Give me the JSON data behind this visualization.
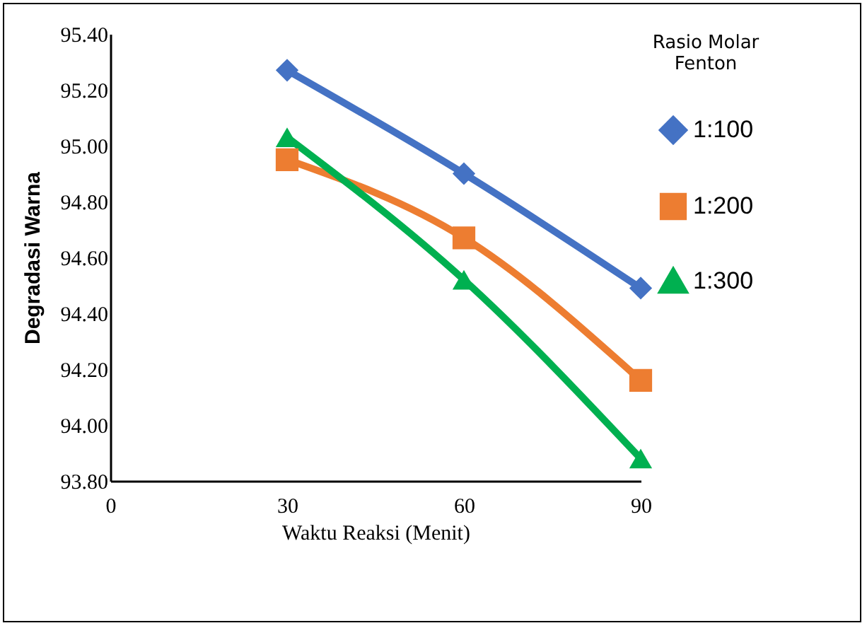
{
  "chart_data": {
    "type": "line",
    "xlabel": "Waktu Reaksi (Menit)",
    "ylabel": "Degradasi Warna",
    "legend_title": "Rasio Molar Fenton",
    "x": [
      30,
      60,
      90
    ],
    "series": [
      {
        "name": "1:100",
        "color": "#4472c4",
        "marker": "diamond",
        "values": [
          95.27,
          94.9,
          94.49
        ]
      },
      {
        "name": "1:200",
        "color": "#ed7d31",
        "marker": "square",
        "values": [
          94.95,
          94.67,
          94.16
        ]
      },
      {
        "name": "1:300",
        "color": "#00b050",
        "marker": "triangle",
        "values": [
          95.03,
          94.52,
          93.88
        ]
      }
    ],
    "xlim": [
      0,
      90
    ],
    "xticks": [
      0,
      30,
      60,
      90
    ],
    "ylim": [
      93.8,
      95.4
    ],
    "yticks": [
      {
        "value": 93.8,
        "label": "93.80"
      },
      {
        "value": 94.0,
        "label": "94.00"
      },
      {
        "value": 94.2,
        "label": "94.20"
      },
      {
        "value": 94.4,
        "label": "94.40"
      },
      {
        "value": 94.6,
        "label": "94.60"
      },
      {
        "value": 94.8,
        "label": "94.80"
      },
      {
        "value": 95.0,
        "label": "95.00"
      },
      {
        "value": 95.2,
        "label": "95.20"
      },
      {
        "value": 95.4,
        "label": "95.40"
      }
    ],
    "grid": false,
    "legend": "top right"
  }
}
